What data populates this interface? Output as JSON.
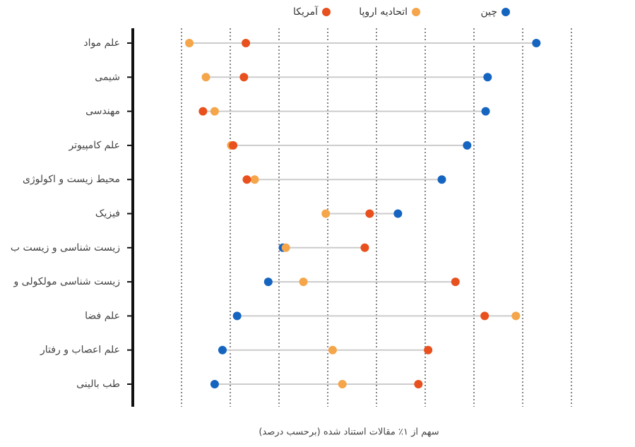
{
  "chart_data": {
    "type": "dot",
    "xlabel": "سهم از ۱٪ مقالات استناد شده (برحسب درصد)",
    "categories": [
      "علم مواد",
      "شیمی",
      "مهندسی",
      "علم کامپیوتر",
      "محیط زیست و اکولوژی",
      "فیزیک",
      "زیست شناسی و زیست ب",
      "زیست شناسی مولکولی و",
      "علم فضا",
      "علم اعصاب و رفتار",
      "طب بالینی"
    ],
    "series": [
      {
        "name": "چین",
        "color": "#1565c0",
        "values": [
          41.4,
          36.4,
          36.2,
          34.3,
          31.7,
          27.2,
          15.4,
          13.9,
          10.7,
          9.2,
          8.4
        ]
      },
      {
        "name": "اتحادیه اروپا",
        "color": "#f5a54a",
        "values": [
          5.8,
          7.5,
          8.4,
          10.1,
          12.5,
          19.8,
          15.7,
          17.5,
          39.3,
          20.5,
          21.5
        ]
      },
      {
        "name": "آمریکا",
        "color": "#e8501e",
        "values": [
          11.6,
          11.4,
          7.2,
          10.3,
          11.7,
          24.3,
          23.8,
          33.1,
          36.1,
          30.3,
          29.3
        ]
      }
    ],
    "xlim": [
      0,
      47
    ],
    "xticks": [
      5,
      10,
      15,
      20,
      25,
      30,
      35,
      40,
      45
    ],
    "grid": true
  }
}
